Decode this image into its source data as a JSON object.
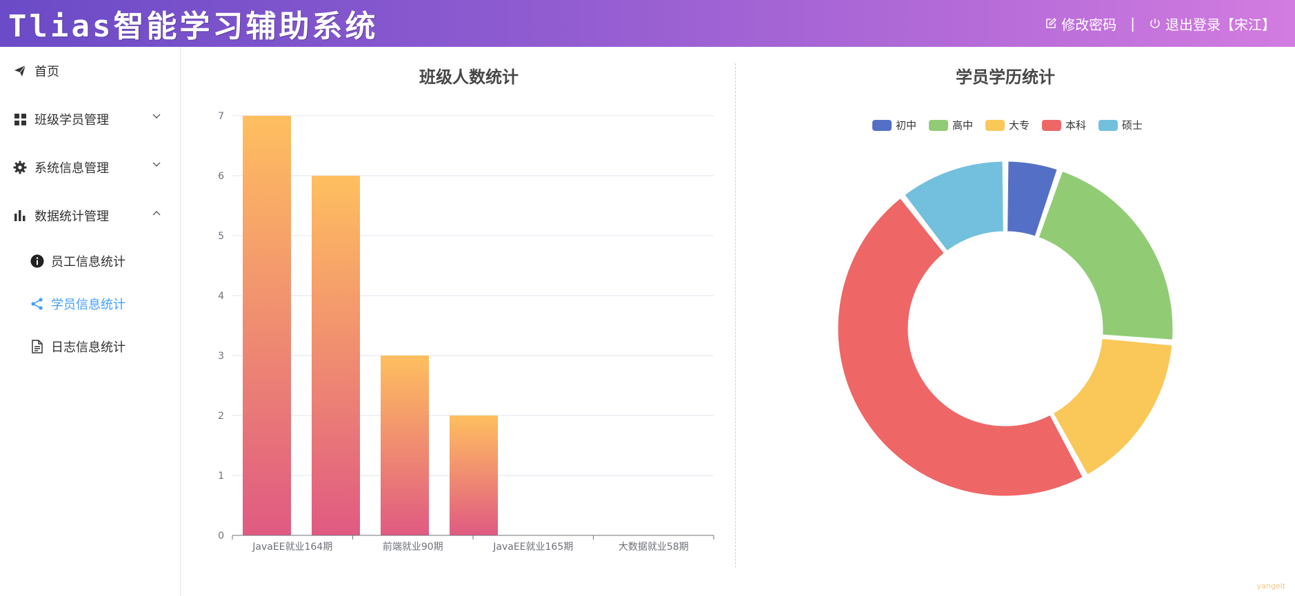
{
  "header": {
    "title": "Tlias智能学习辅助系统",
    "change_password": "修改密码",
    "separator": "|",
    "logout": "退出登录【宋江】"
  },
  "sidebar": {
    "items": [
      {
        "label": "首页",
        "icon": "paper-plane-icon"
      },
      {
        "label": "班级学员管理",
        "icon": "grid-icon",
        "arrow": "chevron-down-icon"
      },
      {
        "label": "系统信息管理",
        "icon": "gear-icon",
        "arrow": "chevron-down-icon"
      },
      {
        "label": "数据统计管理",
        "icon": "bar-chart-icon",
        "arrow": "chevron-up-icon"
      }
    ],
    "subitems": [
      {
        "label": "员工信息统计",
        "icon": "info-icon"
      },
      {
        "label": "学员信息统计",
        "icon": "share-icon",
        "active": true
      },
      {
        "label": "日志信息统计",
        "icon": "document-icon"
      }
    ],
    "active_color": "#409eff"
  },
  "watermark": "yangeit",
  "chart_data": [
    {
      "type": "bar",
      "title": "班级人数统计",
      "categories": [
        "JavaEE就业164期",
        "前端就业90期",
        "JavaEE就业165期",
        "大数据就业58期"
      ],
      "values": [
        7,
        6,
        3,
        2
      ],
      "ylim": [
        0,
        7
      ],
      "yticks": [
        "0",
        "1",
        "2",
        "3",
        "4",
        "5",
        "6",
        "7"
      ],
      "gradient": [
        "#ffbf5f",
        "#e05a82"
      ],
      "grid": true
    },
    {
      "type": "pie",
      "title": "学员学历统计",
      "legend_position": "top",
      "labels": [
        "初中",
        "高中",
        "大专",
        "本科",
        "硕士"
      ],
      "values": [
        1,
        4,
        3,
        9,
        2
      ],
      "colors": [
        "#5470c6",
        "#91cc75",
        "#fac858",
        "#ee6666",
        "#73c0de"
      ]
    }
  ]
}
